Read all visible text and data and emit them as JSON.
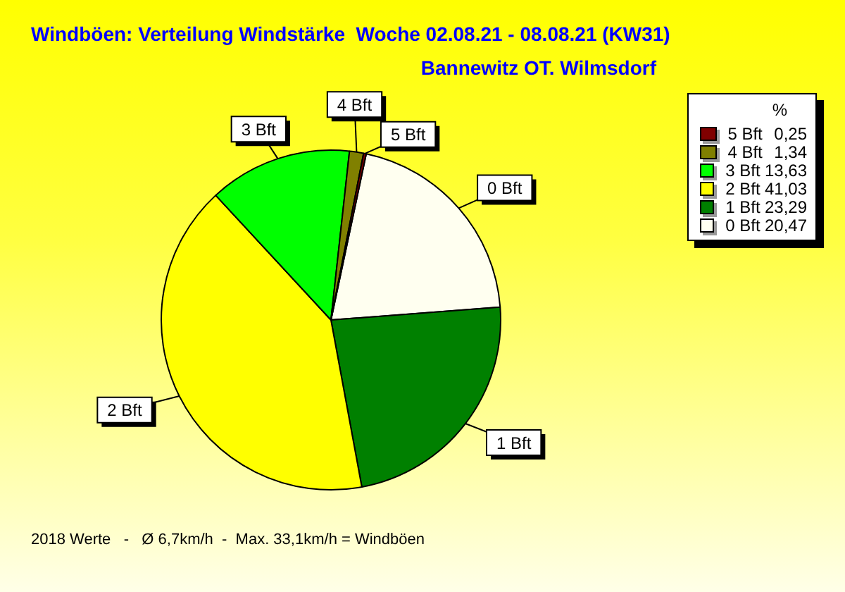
{
  "chart_data": {
    "type": "pie",
    "title": "Windböen: Verteilung Windstärke  Woche 02.08.21 - 08.08.21 (KW31)",
    "subtitle": "Bannewitz OT. Wilmsdorf",
    "legend_title": "%",
    "legend": "top right",
    "categories": [
      "5 Bft",
      "4 Bft",
      "3 Bft",
      "2 Bft",
      "1 Bft",
      "0 Bft"
    ],
    "values": [
      0.25,
      1.34,
      13.63,
      41.03,
      23.29,
      20.47
    ],
    "value_labels": [
      "0,25",
      "1,34",
      "13,63",
      "41,03",
      "23,29",
      "20,47"
    ],
    "colors": [
      "#800000",
      "#808000",
      "#00ff00",
      "#ffff00",
      "#008000",
      "#fffff0"
    ],
    "annotations": [
      "2018 Werte   -   Ø 6,7km/h  -  Max. 33,1km/h = Windböen"
    ]
  }
}
